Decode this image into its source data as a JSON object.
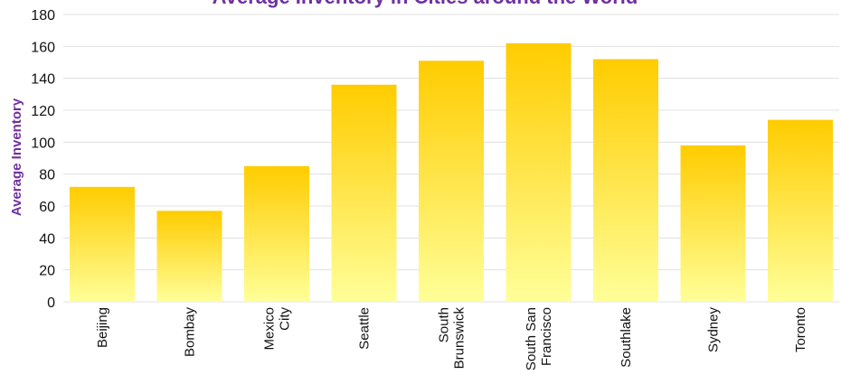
{
  "colors": {
    "title": "#7030a0",
    "bar_top": "#ffcc00",
    "bar_bottom": "#ffff99",
    "grid": "#e0e0e0"
  },
  "chart_data": {
    "type": "bar",
    "title": "Average Inventory in Cities around the World",
    "xlabel": "",
    "ylabel": "Average Inventory",
    "ylim": [
      0,
      180
    ],
    "yticks": [
      0,
      20,
      40,
      60,
      80,
      100,
      120,
      140,
      160,
      180
    ],
    "grid": true,
    "categories": [
      [
        "Beijing"
      ],
      [
        "Bombay"
      ],
      [
        "Mexico",
        "City"
      ],
      [
        "Seattle"
      ],
      [
        "South",
        "Brunswick"
      ],
      [
        "South San",
        "Francisco"
      ],
      [
        "Southlake"
      ],
      [
        "Sydney"
      ],
      [
        "Toronto"
      ]
    ],
    "values": [
      72,
      57,
      85,
      136,
      151,
      162,
      152,
      98,
      114
    ]
  }
}
